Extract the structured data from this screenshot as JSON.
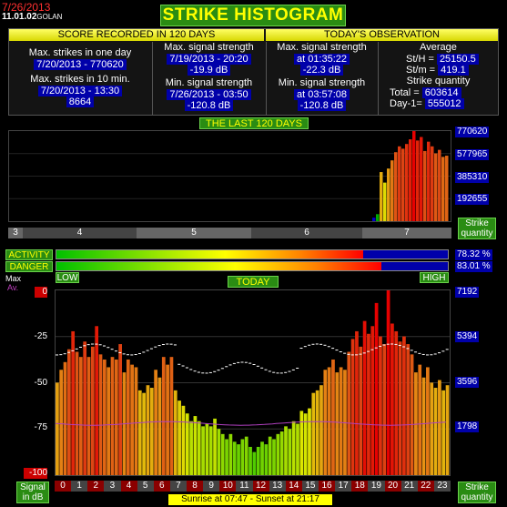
{
  "header": {
    "date": "7/26/2013",
    "version": "11.01.02",
    "station": "GOLAN",
    "title": "STRIKE HISTOGRAM"
  },
  "score": {
    "heading": "SCORE RECORDED IN 120 DAYS",
    "max_day_label": "Max. strikes in one day",
    "max_day_value": "7/20/2013 - 770620",
    "max_10_label": "Max. strikes in 10 min.",
    "max_10_date": "7/20/2013 - 13:30",
    "max_10_value": "8664",
    "max_sig_label": "Max. signal strength",
    "max_sig_date": "7/19/2013 - 20:20",
    "max_sig_value": "-19.9 dB",
    "min_sig_label": "Min. signal strength",
    "min_sig_date": "7/26/2013 - 03:50",
    "min_sig_value": "-120.8 dB"
  },
  "today": {
    "heading": "TODAY'S OBSERVATION",
    "max_sig_label": "Max. signal strength",
    "max_sig_time": "at 01:35:22",
    "max_sig_value": "-22.3 dB",
    "min_sig_label": "Min. signal strength",
    "min_sig_time": "at 03:57:08",
    "min_sig_value": "-120.8 dB",
    "avg_label": "Average",
    "sth_label": "St/H =",
    "sth_value": "25150.5",
    "stm_label": "St/m =",
    "stm_value": "419.1",
    "qty_label": "Strike quantity",
    "total_label": "Total  =",
    "total_value": "603614",
    "day1_label": "Day-1=",
    "day1_value": "555012"
  },
  "last120": {
    "heading": "THE LAST 120 DAYS",
    "y_ticks": [
      "770620",
      "577965",
      "385310",
      "192655"
    ],
    "months": [
      "3",
      "4",
      "5",
      "6",
      "7"
    ],
    "qty_label_1": "Strike",
    "qty_label_2": "quantity",
    "chart_data": {
      "type": "bar",
      "ylim": [
        0,
        770620
      ],
      "values": [
        30000,
        60000,
        420000,
        330000,
        450000,
        520000,
        590000,
        640000,
        620000,
        660000,
        700000,
        770620,
        690000,
        720000,
        600000,
        680000,
        640000,
        580000,
        610000,
        550000,
        560000
      ]
    }
  },
  "meters": {
    "activity_label": "ACTIVITY",
    "activity_value": "78.32 %",
    "activity_fraction": 0.7832,
    "danger_label": "DANGER",
    "danger_value": "83.01 %",
    "danger_fraction": 0.8301,
    "low": "LOW",
    "high": "HIGH"
  },
  "today_chart": {
    "heading": "TODAY",
    "max_label": "Max",
    "av_label": "Av.",
    "left_ticks": [
      "0",
      "-25",
      "-50",
      "-75",
      "-100"
    ],
    "right_ticks": [
      "7192",
      "5394",
      "3596",
      "1798"
    ],
    "hours": [
      "0",
      "1",
      "2",
      "3",
      "4",
      "5",
      "6",
      "7",
      "8",
      "9",
      "10",
      "11",
      "12",
      "13",
      "14",
      "15",
      "16",
      "17",
      "18",
      "19",
      "20",
      "21",
      "22",
      "23"
    ],
    "signal_label_1": "Signal",
    "signal_label_2": "in dB",
    "qty_label_1": "Strike",
    "qty_label_2": "quantity",
    "sun": "Sunrise at 07:47  -  Sunset at 21:17",
    "chart_data": {
      "type": "bar",
      "ylim": [
        0,
        7192
      ],
      "values": [
        3600,
        4100,
        4400,
        4900,
        5600,
        4800,
        4600,
        5200,
        4600,
        5000,
        5800,
        4700,
        4500,
        4200,
        4600,
        4500,
        5100,
        4000,
        4500,
        4300,
        4200,
        3300,
        3200,
        3500,
        3400,
        4100,
        3800,
        4600,
        4300,
        4600,
        3300,
        2900,
        2700,
        2400,
        2100,
        2300,
        2100,
        1900,
        2000,
        1900,
        2200,
        1800,
        1600,
        1400,
        1600,
        1300,
        1200,
        1400,
        1500,
        1100,
        900,
        1100,
        1300,
        1200,
        1500,
        1400,
        1600,
        1700,
        1900,
        1800,
        2100,
        2000,
        2500,
        2400,
        2600,
        3200,
        3300,
        3500,
        4100,
        4200,
        4500,
        4000,
        4200,
        4100,
        4800,
        5300,
        5600,
        5000,
        6000,
        5500,
        5800,
        6700,
        5400,
        5100,
        7192,
        5900,
        5600,
        5200,
        5400,
        5100,
        4700,
        4000,
        4300,
        3800,
        4200,
        3600,
        3400,
        3700,
        3300,
        3500
      ]
    }
  }
}
